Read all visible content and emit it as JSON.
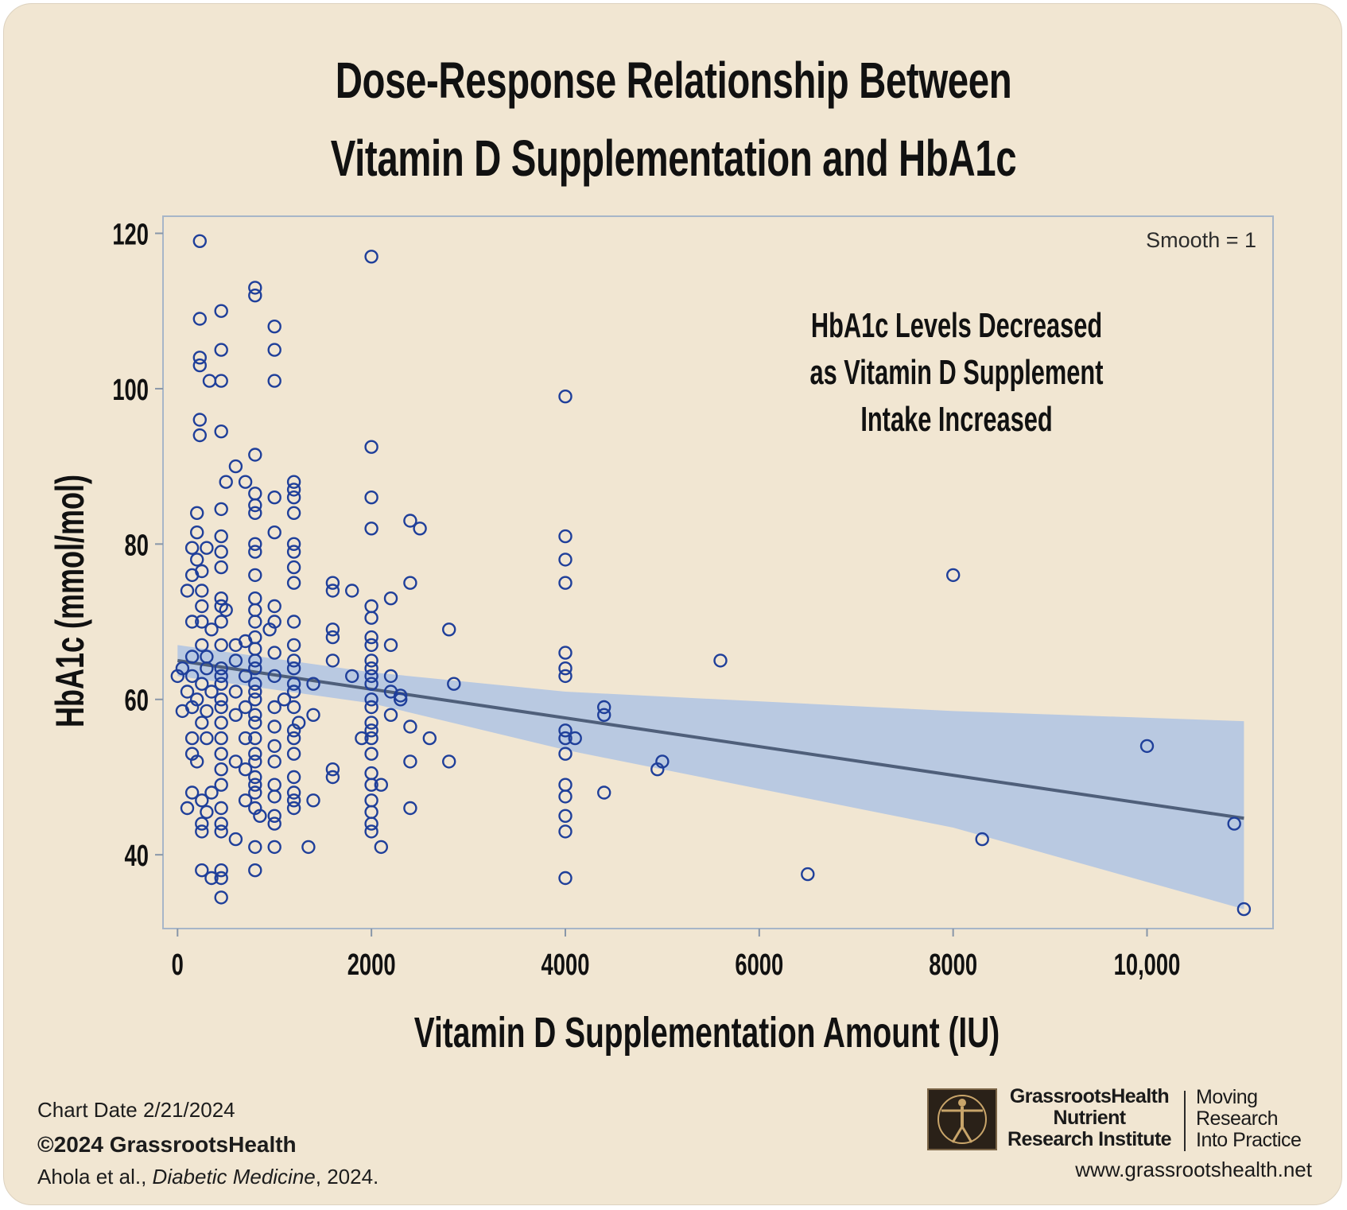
{
  "page": {
    "title_line1": "Dose-Response Relationship Between",
    "title_line2": "Vitamin D Supplementation and HbA1c",
    "annotation": [
      "HbA1c Levels Decreased",
      "as Vitamin D Supplement",
      "Intake Increased"
    ],
    "smooth_label": "Smooth = 1"
  },
  "footer": {
    "chart_date": "Chart Date 2/21/2024",
    "copyright": "©2024 GrassrootsHealth",
    "citation_authors": "Ahola et al., ",
    "citation_journal": "Diabetic Medicine",
    "citation_year": ", 2024.",
    "org_line1": "GrassrootsHealth",
    "org_line2": "Nutrient",
    "org_line3": "Research Institute",
    "tagline_line1": "Moving",
    "tagline_line2": "Research",
    "tagline_line3": "Into Practice",
    "website": "www.grassrootshealth.net"
  },
  "colors": {
    "background": "#f1e6d2",
    "marker": "#1f3f9a",
    "band": "#a9c0e6",
    "fit_line": "#4f5f7a"
  },
  "chart_data": {
    "type": "scatter",
    "title": "Dose-Response Relationship Between Vitamin D Supplementation and HbA1c",
    "xlabel": "Vitamin D Supplementation Amount (IU)",
    "ylabel": "HbA1c (mmol/mol)",
    "xlim": [
      -150,
      11300
    ],
    "ylim": [
      30.5,
      122.2
    ],
    "x_ticks": [
      0,
      2000,
      4000,
      6000,
      8000,
      10000
    ],
    "x_tick_labels": [
      "0",
      "2000",
      "4000",
      "6000",
      "8000",
      "10,000"
    ],
    "y_ticks": [
      40,
      60,
      80,
      100,
      120
    ],
    "y_tick_labels": [
      "40",
      "60",
      "80",
      "100",
      "120"
    ],
    "grid": false,
    "fit": {
      "type": "linear",
      "line": [
        [
          0,
          65.0
        ],
        [
          11000,
          44.7
        ]
      ],
      "band_upper": [
        [
          0,
          67.0
        ],
        [
          2000,
          63.5
        ],
        [
          4000,
          61.0
        ],
        [
          8000,
          58.5
        ],
        [
          11000,
          57.2
        ]
      ],
      "band_lower": [
        [
          0,
          63.0
        ],
        [
          2000,
          59.5
        ],
        [
          4000,
          53.5
        ],
        [
          8000,
          43.5
        ],
        [
          11000,
          33.0
        ]
      ]
    },
    "points": [
      [
        230,
        119
      ],
      [
        2000,
        117
      ],
      [
        800,
        113
      ],
      [
        800,
        112
      ],
      [
        1000,
        108
      ],
      [
        450,
        110
      ],
      [
        230,
        109
      ],
      [
        450,
        105
      ],
      [
        1000,
        105
      ],
      [
        230,
        104
      ],
      [
        230,
        103
      ],
      [
        330,
        101
      ],
      [
        450,
        101
      ],
      [
        1000,
        101
      ],
      [
        4000,
        99
      ],
      [
        230,
        96
      ],
      [
        230,
        94
      ],
      [
        450,
        94.5
      ],
      [
        800,
        91.5
      ],
      [
        2000,
        92.5
      ],
      [
        600,
        90
      ],
      [
        500,
        88
      ],
      [
        700,
        88
      ],
      [
        1200,
        88
      ],
      [
        1200,
        87
      ],
      [
        800,
        86.5
      ],
      [
        1000,
        86
      ],
      [
        1200,
        86
      ],
      [
        2000,
        86
      ],
      [
        800,
        85
      ],
      [
        450,
        84.5
      ],
      [
        800,
        84
      ],
      [
        1200,
        84
      ],
      [
        200,
        84
      ],
      [
        2400,
        83
      ],
      [
        2500,
        82
      ],
      [
        2000,
        82
      ],
      [
        1000,
        81.5
      ],
      [
        450,
        81
      ],
      [
        4000,
        81
      ],
      [
        200,
        81.5
      ],
      [
        150,
        79.5
      ],
      [
        300,
        79.5
      ],
      [
        800,
        80
      ],
      [
        1200,
        80
      ],
      [
        1200,
        79
      ],
      [
        450,
        79
      ],
      [
        800,
        79
      ],
      [
        4000,
        78
      ],
      [
        200,
        78
      ],
      [
        450,
        77
      ],
      [
        150,
        76
      ],
      [
        1200,
        77
      ],
      [
        8000,
        76
      ],
      [
        250,
        76.5
      ],
      [
        800,
        76
      ],
      [
        1200,
        75
      ],
      [
        1600,
        75
      ],
      [
        2400,
        75
      ],
      [
        4000,
        75
      ],
      [
        100,
        74
      ],
      [
        250,
        74
      ],
      [
        1600,
        74
      ],
      [
        1800,
        74
      ],
      [
        450,
        73
      ],
      [
        800,
        73
      ],
      [
        2200,
        73
      ],
      [
        250,
        72
      ],
      [
        450,
        72
      ],
      [
        500,
        71.5
      ],
      [
        800,
        71.5
      ],
      [
        1000,
        72
      ],
      [
        2000,
        72
      ],
      [
        150,
        70
      ],
      [
        250,
        70
      ],
      [
        450,
        70
      ],
      [
        800,
        70
      ],
      [
        1000,
        70
      ],
      [
        1200,
        70
      ],
      [
        2000,
        70.5
      ],
      [
        2800,
        69
      ],
      [
        1600,
        69
      ],
      [
        950,
        69
      ],
      [
        350,
        69
      ],
      [
        800,
        68
      ],
      [
        1600,
        68
      ],
      [
        2000,
        68
      ],
      [
        700,
        67.5
      ],
      [
        600,
        67
      ],
      [
        450,
        67
      ],
      [
        250,
        67
      ],
      [
        1200,
        67
      ],
      [
        2000,
        67
      ],
      [
        2200,
        67
      ],
      [
        800,
        66.5
      ],
      [
        1000,
        66
      ],
      [
        4000,
        66
      ],
      [
        150,
        65.5
      ],
      [
        300,
        65.5
      ],
      [
        600,
        65
      ],
      [
        800,
        65
      ],
      [
        1200,
        65
      ],
      [
        1600,
        65
      ],
      [
        2000,
        65
      ],
      [
        5600,
        65
      ],
      [
        50,
        64
      ],
      [
        300,
        64
      ],
      [
        450,
        64
      ],
      [
        800,
        64
      ],
      [
        1200,
        64
      ],
      [
        2000,
        64
      ],
      [
        4000,
        64
      ],
      [
        150,
        63
      ],
      [
        450,
        63
      ],
      [
        700,
        63
      ],
      [
        1000,
        63
      ],
      [
        1800,
        63
      ],
      [
        2000,
        63
      ],
      [
        2200,
        63
      ],
      [
        4000,
        63
      ],
      [
        0,
        63
      ],
      [
        250,
        62
      ],
      [
        450,
        62
      ],
      [
        800,
        62
      ],
      [
        1200,
        62
      ],
      [
        1400,
        62
      ],
      [
        2000,
        62
      ],
      [
        2850,
        62
      ],
      [
        100,
        61
      ],
      [
        350,
        61
      ],
      [
        600,
        61
      ],
      [
        800,
        61
      ],
      [
        1200,
        61
      ],
      [
        2200,
        61
      ],
      [
        2300,
        60
      ],
      [
        200,
        60
      ],
      [
        450,
        60
      ],
      [
        800,
        60
      ],
      [
        1100,
        60
      ],
      [
        2000,
        60
      ],
      [
        2300,
        60.5
      ],
      [
        150,
        59
      ],
      [
        450,
        59
      ],
      [
        700,
        59
      ],
      [
        1000,
        59
      ],
      [
        1200,
        59
      ],
      [
        2000,
        59
      ],
      [
        4400,
        59
      ],
      [
        50,
        58.5
      ],
      [
        300,
        58.5
      ],
      [
        600,
        58
      ],
      [
        800,
        58
      ],
      [
        1400,
        58
      ],
      [
        2200,
        58
      ],
      [
        4400,
        58
      ],
      [
        250,
        57
      ],
      [
        450,
        57
      ],
      [
        800,
        57
      ],
      [
        1250,
        57
      ],
      [
        2000,
        57
      ],
      [
        1000,
        56.5
      ],
      [
        1200,
        56
      ],
      [
        2000,
        56
      ],
      [
        2400,
        56.5
      ],
      [
        4000,
        56
      ],
      [
        150,
        55
      ],
      [
        300,
        55
      ],
      [
        450,
        55
      ],
      [
        700,
        55
      ],
      [
        800,
        55
      ],
      [
        1200,
        55
      ],
      [
        1900,
        55
      ],
      [
        2000,
        55
      ],
      [
        2600,
        55
      ],
      [
        4000,
        55
      ],
      [
        4100,
        55
      ],
      [
        10000,
        54
      ],
      [
        150,
        53
      ],
      [
        450,
        53
      ],
      [
        800,
        53
      ],
      [
        1000,
        54
      ],
      [
        1200,
        53
      ],
      [
        2000,
        53
      ],
      [
        4000,
        53
      ],
      [
        200,
        52
      ],
      [
        600,
        52
      ],
      [
        800,
        52
      ],
      [
        1000,
        52
      ],
      [
        2400,
        52
      ],
      [
        2800,
        52
      ],
      [
        5000,
        52
      ],
      [
        4950,
        51
      ],
      [
        450,
        51
      ],
      [
        700,
        51
      ],
      [
        1600,
        51
      ],
      [
        2000,
        50.5
      ],
      [
        800,
        50
      ],
      [
        1200,
        50
      ],
      [
        1600,
        50
      ],
      [
        450,
        49
      ],
      [
        800,
        49
      ],
      [
        1000,
        49
      ],
      [
        2000,
        49
      ],
      [
        2100,
        49
      ],
      [
        4000,
        49
      ],
      [
        150,
        48
      ],
      [
        350,
        48
      ],
      [
        800,
        48
      ],
      [
        1200,
        48
      ],
      [
        4400,
        48
      ],
      [
        4000,
        47.5
      ],
      [
        250,
        47
      ],
      [
        700,
        47
      ],
      [
        1000,
        47.5
      ],
      [
        1200,
        47
      ],
      [
        1400,
        47
      ],
      [
        2000,
        47
      ],
      [
        100,
        46
      ],
      [
        300,
        45.5
      ],
      [
        450,
        46
      ],
      [
        800,
        46
      ],
      [
        1200,
        46
      ],
      [
        2400,
        46
      ],
      [
        2000,
        45.5
      ],
      [
        4000,
        45
      ],
      [
        850,
        45
      ],
      [
        1000,
        45
      ],
      [
        2000,
        44
      ],
      [
        250,
        44
      ],
      [
        450,
        44
      ],
      [
        1000,
        44
      ],
      [
        10900,
        44
      ],
      [
        250,
        43
      ],
      [
        450,
        43
      ],
      [
        2000,
        43
      ],
      [
        4000,
        43
      ],
      [
        600,
        42
      ],
      [
        8300,
        42
      ],
      [
        800,
        41
      ],
      [
        1000,
        41
      ],
      [
        1350,
        41
      ],
      [
        2100,
        41
      ],
      [
        250,
        38
      ],
      [
        450,
        38
      ],
      [
        800,
        38
      ],
      [
        6500,
        37.5
      ],
      [
        350,
        37
      ],
      [
        450,
        37
      ],
      [
        4000,
        37
      ],
      [
        450,
        34.5
      ],
      [
        11000,
        33
      ]
    ]
  }
}
